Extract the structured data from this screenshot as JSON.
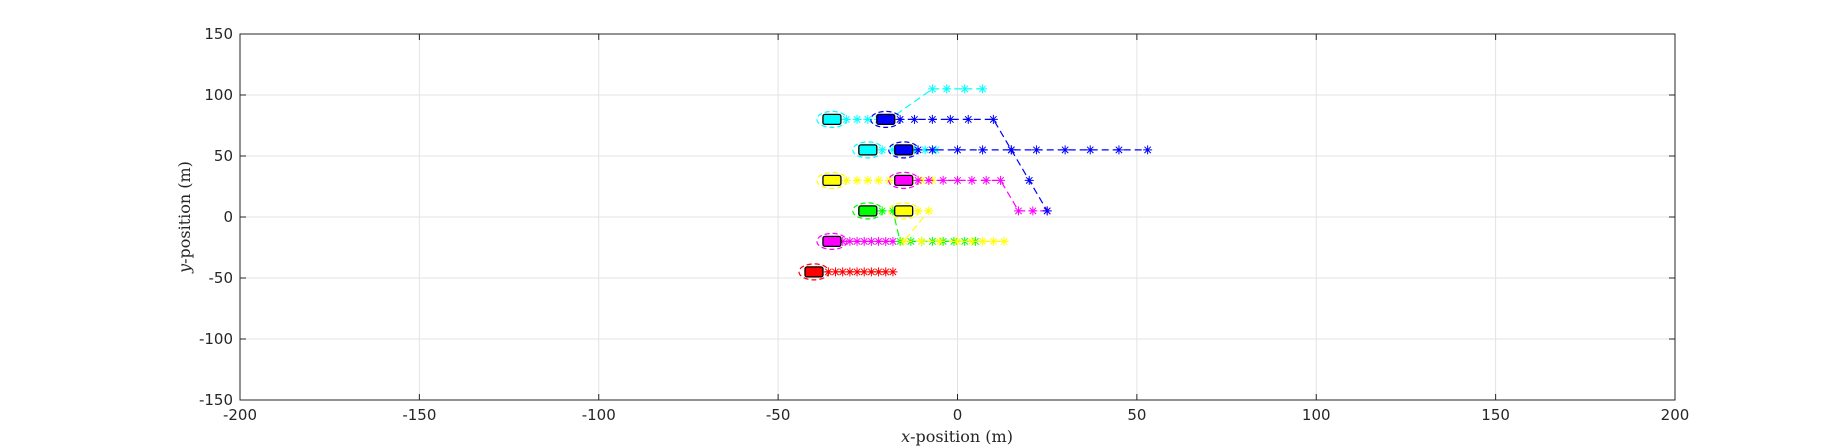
{
  "chart_data": {
    "type": "scatter",
    "title": "",
    "xlabel": {
      "var": "x",
      "rest": "-position (m)"
    },
    "ylabel": {
      "var": "y",
      "rest": "-position (m)"
    },
    "xlim": [
      -200,
      200
    ],
    "ylim": [
      -150,
      150
    ],
    "xticks": [
      -200,
      -150,
      -100,
      -50,
      0,
      50,
      100,
      150,
      200
    ],
    "yticks": [
      -150,
      -100,
      -50,
      0,
      50,
      100,
      150
    ],
    "grid": true,
    "legend": "none",
    "vehicles": [
      {
        "color": "#ff0000",
        "x": -40,
        "y": -45,
        "trajectory": [
          [
            -36,
            -45
          ],
          [
            -34,
            -45
          ],
          [
            -32,
            -45
          ],
          [
            -30,
            -45
          ],
          [
            -28,
            -45
          ],
          [
            -26,
            -45
          ],
          [
            -24,
            -45
          ],
          [
            -22,
            -45
          ],
          [
            -20,
            -45
          ],
          [
            -18,
            -45
          ]
        ]
      },
      {
        "color": "#ff00ff",
        "x": -35,
        "y": -20,
        "trajectory": [
          [
            -32,
            -20
          ],
          [
            -30,
            -20
          ],
          [
            -28,
            -20
          ],
          [
            -26,
            -20
          ],
          [
            -24,
            -20
          ],
          [
            -22,
            -20
          ],
          [
            -20,
            -20
          ],
          [
            -18,
            -20
          ]
        ]
      },
      {
        "color": "#00ff00",
        "x": -25,
        "y": 5,
        "trajectory": [
          [
            -21,
            5
          ],
          [
            -18,
            5
          ],
          [
            -16,
            -20
          ],
          [
            -13,
            -20
          ],
          [
            -10,
            -20
          ],
          [
            -7,
            -20
          ],
          [
            -4,
            -20
          ],
          [
            -1,
            -20
          ],
          [
            2,
            -20
          ],
          [
            5,
            -20
          ]
        ]
      },
      {
        "color": "#ffff00",
        "x": -15,
        "y": 5,
        "trajectory": [
          [
            -11,
            5
          ],
          [
            -8,
            5
          ],
          [
            -15,
            -20
          ],
          [
            -10,
            -20
          ],
          [
            -5,
            -20
          ],
          [
            0,
            -20
          ],
          [
            4,
            -20
          ],
          [
            7,
            -20
          ],
          [
            10,
            -20
          ],
          [
            13,
            -20
          ]
        ]
      },
      {
        "color": "#ffff00",
        "x": -35,
        "y": 30,
        "trajectory": [
          [
            -31,
            30
          ],
          [
            -28,
            30
          ],
          [
            -25,
            30
          ],
          [
            -22,
            30
          ],
          [
            -19,
            30
          ],
          [
            -16,
            30
          ],
          [
            -13,
            30
          ],
          [
            -10,
            30
          ],
          [
            -7,
            30
          ]
        ]
      },
      {
        "color": "#ff00ff",
        "x": -15,
        "y": 30,
        "trajectory": [
          [
            -11,
            30
          ],
          [
            -8,
            30
          ],
          [
            -4,
            30
          ],
          [
            0,
            30
          ],
          [
            4,
            30
          ],
          [
            8,
            30
          ],
          [
            12,
            30
          ],
          [
            17,
            5
          ],
          [
            21,
            5
          ],
          [
            25,
            5
          ]
        ]
      },
      {
        "color": "#00ffff",
        "x": -25,
        "y": 55,
        "trajectory": [
          [
            -21,
            55
          ],
          [
            -18,
            55
          ],
          [
            -15,
            55
          ],
          [
            -12,
            55
          ],
          [
            -9,
            55
          ],
          [
            -6,
            55
          ]
        ]
      },
      {
        "color": "#0000ff",
        "x": -15,
        "y": 55,
        "trajectory": [
          [
            -11,
            55
          ],
          [
            -7,
            55
          ],
          [
            0,
            55
          ],
          [
            7,
            55
          ],
          [
            15,
            55
          ],
          [
            22,
            55
          ],
          [
            30,
            55
          ],
          [
            37,
            55
          ],
          [
            45,
            55
          ],
          [
            53,
            55
          ]
        ]
      },
      {
        "color": "#00ffff",
        "x": -35,
        "y": 80,
        "trajectory": [
          [
            -31,
            80
          ],
          [
            -28,
            80
          ],
          [
            -25,
            80
          ],
          [
            -22,
            80
          ],
          [
            -19,
            80
          ],
          [
            -7,
            105
          ],
          [
            -3,
            105
          ],
          [
            2,
            105
          ],
          [
            7,
            105
          ]
        ]
      },
      {
        "color": "#0000ff",
        "x": -20,
        "y": 80,
        "trajectory": [
          [
            -16,
            80
          ],
          [
            -12,
            80
          ],
          [
            -7,
            80
          ],
          [
            -2,
            80
          ],
          [
            3,
            80
          ],
          [
            10,
            80
          ],
          [
            15,
            55
          ],
          [
            20,
            30
          ],
          [
            25,
            5
          ]
        ]
      }
    ]
  }
}
